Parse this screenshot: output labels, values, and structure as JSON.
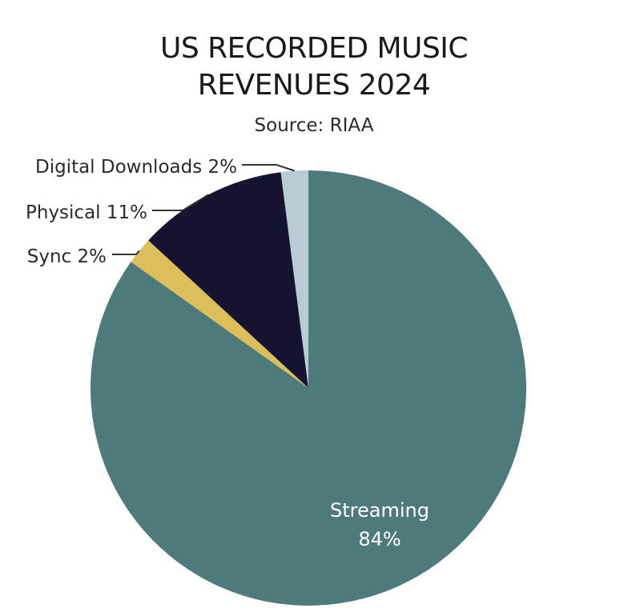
{
  "chart_data": {
    "type": "pie",
    "title_lines": [
      "US RECORDED MUSIC",
      "REVENUES 2024"
    ],
    "subtitle": "Source: RIAA",
    "slices": [
      {
        "name": "Streaming",
        "value": 84,
        "label_name": "Streaming",
        "label_value": "84%",
        "color": "#4f7a7c"
      },
      {
        "name": "Sync",
        "value": 2,
        "label": "Sync 2%",
        "color": "#dcbf5a"
      },
      {
        "name": "Physical",
        "value": 11,
        "label": "Physical 11%",
        "color": "#141430"
      },
      {
        "name": "Digital Downloads",
        "value": 2,
        "label": "Digital Downloads 2%",
        "color": "#b9cbd4"
      }
    ]
  }
}
